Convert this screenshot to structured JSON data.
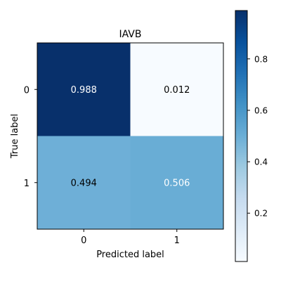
{
  "chart_data": {
    "type": "heatmap",
    "title": "IAVB",
    "xlabel": "Predicted label",
    "ylabel": "True label",
    "x_categories": [
      "0",
      "1"
    ],
    "y_categories": [
      "0",
      "1"
    ],
    "values": [
      [
        0.988,
        0.012
      ],
      [
        0.494,
        0.506
      ]
    ],
    "value_labels": [
      [
        "0.988",
        "0.012"
      ],
      [
        "0.494",
        "0.506"
      ]
    ],
    "colormap": "Blues",
    "colorbar": {
      "range": [
        0.012,
        0.988
      ],
      "ticks": [
        0.2,
        0.4,
        0.6,
        0.8
      ],
      "tick_labels": [
        "0.2",
        "0.4",
        "0.6",
        "0.8"
      ]
    },
    "grid": false
  }
}
